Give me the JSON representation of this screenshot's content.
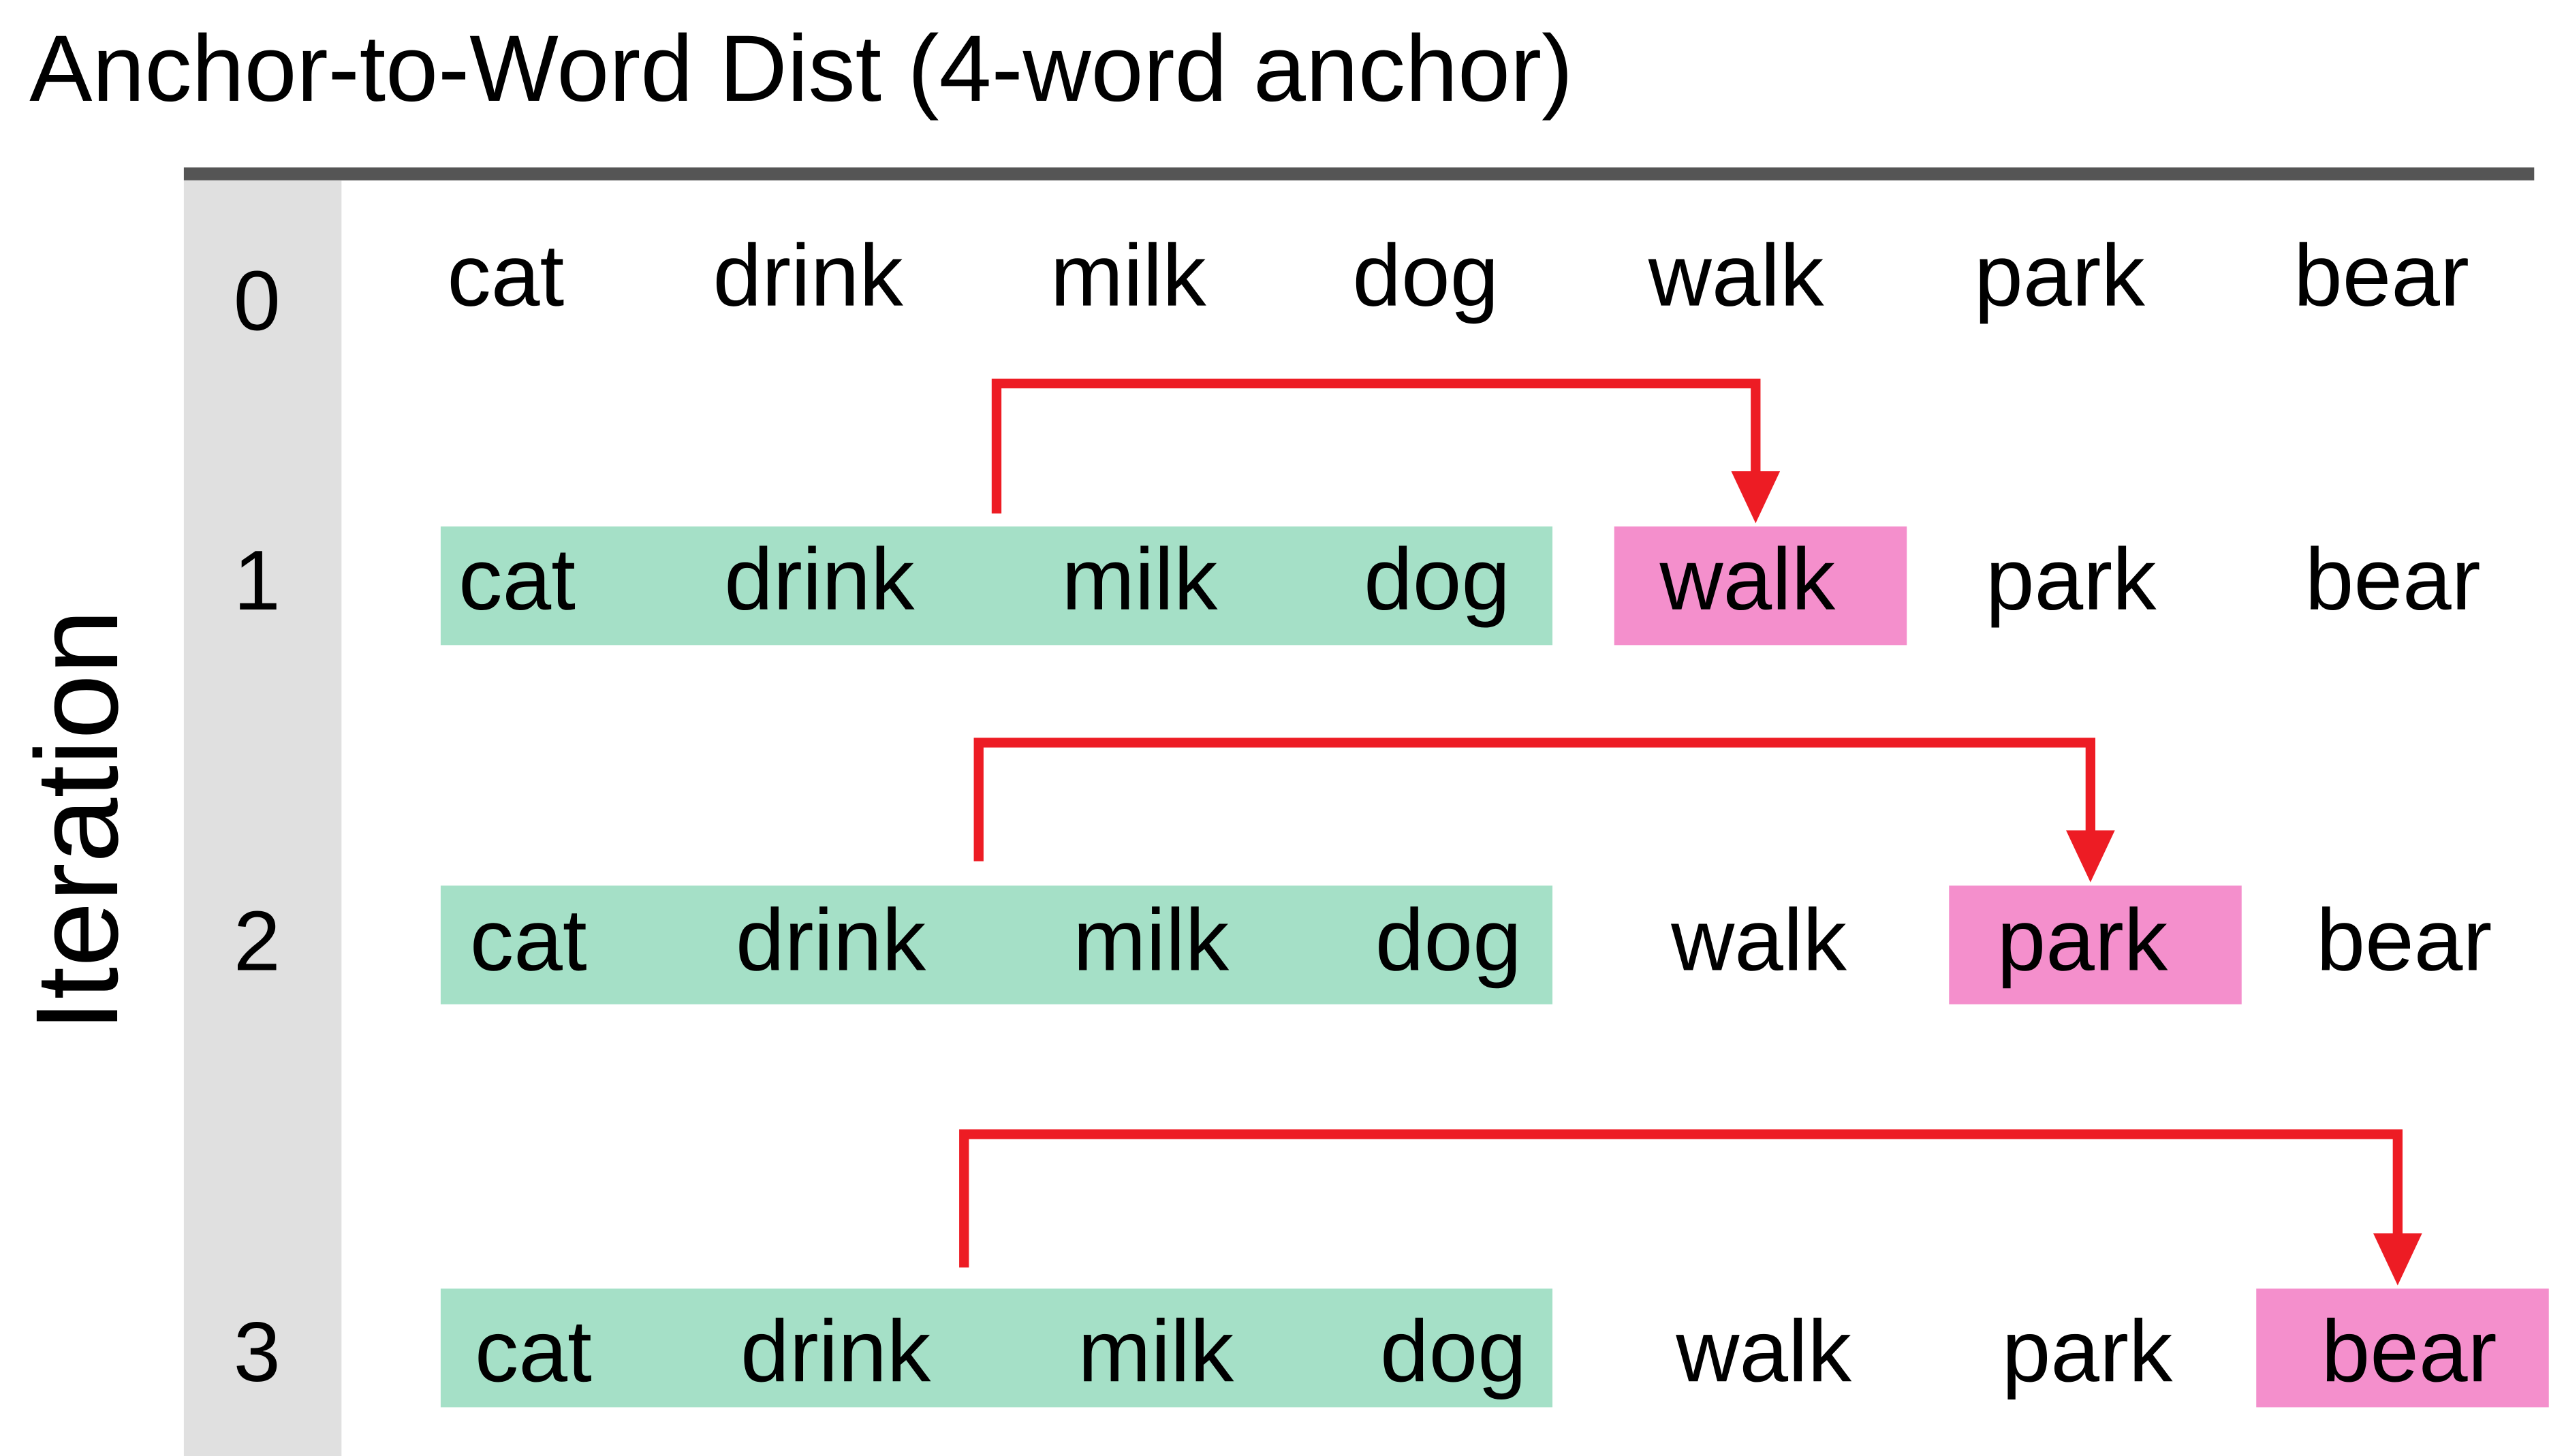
{
  "title": "Anchor-to-Word Dist (4-word anchor)",
  "y_label": "Iteration",
  "colors": {
    "anchor": "#a5e0c7",
    "target": "#f48fcc",
    "arrow": "#ed1c24",
    "iteration_column": "#e0e0e0",
    "top_rule": "#555555"
  },
  "rows": [
    {
      "iteration": "0",
      "words": [
        "cat",
        "drink",
        "milk",
        "dog",
        "walk",
        "park",
        "bear"
      ],
      "anchor": [],
      "target": null
    },
    {
      "iteration": "1",
      "words": [
        "cat",
        "drink",
        "milk",
        "dog",
        "walk",
        "park",
        "bear"
      ],
      "anchor": [
        0,
        1,
        2,
        3
      ],
      "target": 4
    },
    {
      "iteration": "2",
      "words": [
        "cat",
        "drink",
        "milk",
        "dog",
        "walk",
        "park",
        "bear"
      ],
      "anchor": [
        0,
        1,
        2,
        3
      ],
      "target": 5
    },
    {
      "iteration": "3",
      "words": [
        "cat",
        "drink",
        "milk",
        "dog",
        "walk",
        "park",
        "bear"
      ],
      "anchor": [
        0,
        1,
        2,
        3
      ],
      "target": 6
    }
  ]
}
